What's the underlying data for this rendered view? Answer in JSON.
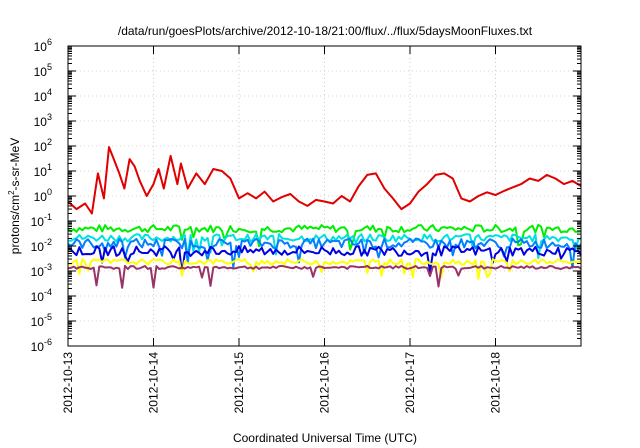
{
  "chart_data": {
    "type": "line",
    "title": "/data/run/goesPlots/archive/2012-10-18/21:00/flux/../flux/5daysMoonFluxes.txt",
    "xlabel": "Coordinated Universal Time (UTC)",
    "ylabel": {
      "prefix": "protons/cm",
      "superscript": "2",
      "suffix": "-s-sr-MeV"
    },
    "x_ticks": [
      "2012-10-13",
      "2012-10-14",
      "2012-10-15",
      "2012-10-16",
      "2012-10-17",
      "2012-10-18"
    ],
    "x_range_days": [
      0,
      6
    ],
    "y_scale": "log",
    "y_range_exponent": [
      -6,
      6
    ],
    "y_tick_base": "10",
    "y_tick_exponents": [
      -6,
      -5,
      -4,
      -3,
      -2,
      -1,
      0,
      1,
      2,
      3,
      4,
      5,
      6
    ],
    "grid": true,
    "legend": false,
    "series": [
      {
        "color": "#e00000",
        "x": [
          0.0,
          0.1,
          0.2,
          0.28,
          0.35,
          0.42,
          0.48,
          0.52,
          0.6,
          0.66,
          0.72,
          0.78,
          0.84,
          0.92,
          1.0,
          1.06,
          1.12,
          1.2,
          1.28,
          1.32,
          1.4,
          1.5,
          1.6,
          1.7,
          1.8,
          1.9,
          2.0,
          2.1,
          2.2,
          2.3,
          2.4,
          2.5,
          2.6,
          2.7,
          2.8,
          2.9,
          3.0,
          3.1,
          3.2,
          3.3,
          3.4,
          3.5,
          3.6,
          3.7,
          3.8,
          3.9,
          4.0,
          4.1,
          4.2,
          4.3,
          4.4,
          4.5,
          4.6,
          4.7,
          4.8,
          4.9,
          5.0,
          5.1,
          5.2,
          5.3,
          5.4,
          5.5,
          5.6,
          5.7,
          5.8,
          5.9,
          6.0
        ],
        "y": [
          0.6,
          0.3,
          0.5,
          0.2,
          8,
          0.8,
          90,
          40,
          8,
          2,
          30,
          15,
          4,
          1,
          3,
          12,
          2,
          40,
          3,
          20,
          2,
          8,
          3,
          12,
          10,
          5,
          0.8,
          1.3,
          0.8,
          1.5,
          0.6,
          0.9,
          1.2,
          0.6,
          0.4,
          0.7,
          0.6,
          0.5,
          1,
          0.6,
          2.5,
          7,
          8,
          2,
          0.8,
          0.3,
          0.5,
          1.5,
          3,
          7,
          8,
          5,
          0.8,
          0.6,
          1,
          1.4,
          1.1,
          1.6,
          2.2,
          3,
          5,
          4,
          7,
          5,
          3,
          4,
          2.5
        ]
      },
      {
        "color": "#00ee00",
        "y": [
          0.035,
          0.07
        ]
      },
      {
        "color": "#00e0e0",
        "y": [
          0.015,
          0.03
        ]
      },
      {
        "color": "#0080ff",
        "y": [
          0.008,
          0.02
        ]
      },
      {
        "color": "#0000e0",
        "y": [
          0.004,
          0.01
        ]
      },
      {
        "color": "#ffff00",
        "y": [
          0.0018,
          0.003
        ]
      },
      {
        "color": "#993366",
        "y": [
          0.0012,
          0.0016
        ]
      }
    ]
  }
}
